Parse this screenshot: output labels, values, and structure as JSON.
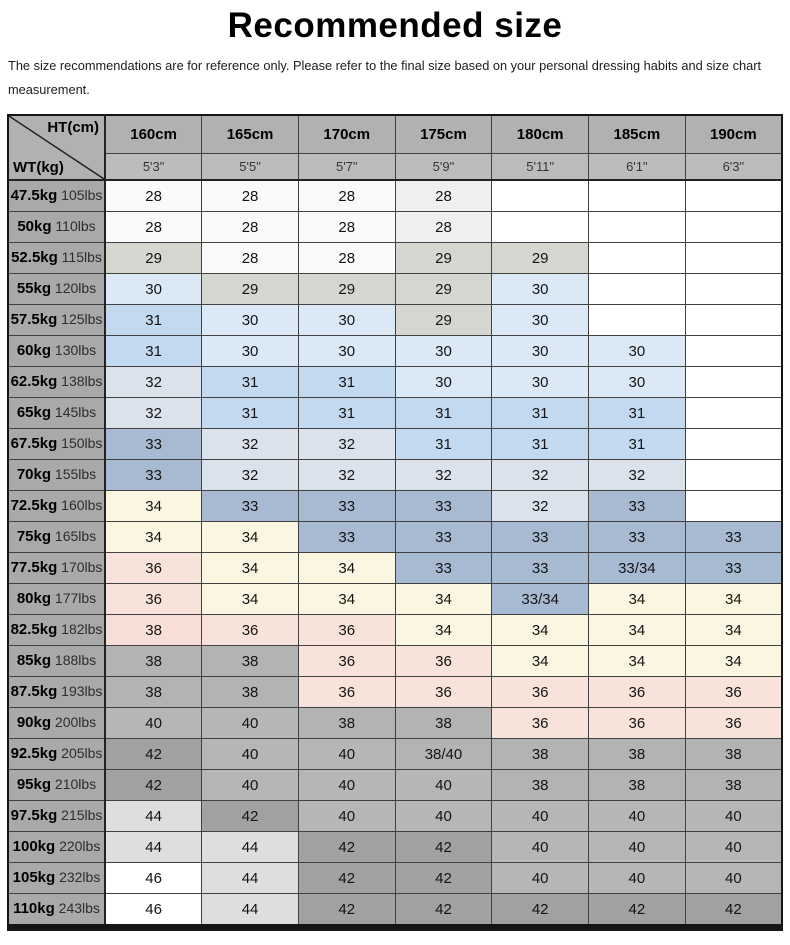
{
  "title": "Recommended size",
  "subtitle": "The size recommendations are for reference only. Please refer to the final size based on your personal dressing habits and size chart measurement.",
  "table": {
    "corner": {
      "ht": "HT(cm)",
      "wt": "WT(kg)"
    },
    "columns": [
      {
        "cm": "160cm",
        "ft": "5'3\""
      },
      {
        "cm": "165cm",
        "ft": "5'5\""
      },
      {
        "cm": "170cm",
        "ft": "5'7\""
      },
      {
        "cm": "175cm",
        "ft": "5'9\""
      },
      {
        "cm": "180cm",
        "ft": "5'11\""
      },
      {
        "cm": "185cm",
        "ft": "6'1\""
      },
      {
        "cm": "190cm",
        "ft": "6'3\""
      }
    ],
    "rows": [
      {
        "kg": "47.5kg",
        "lbs": "105lbs",
        "values": [
          "28",
          "28",
          "28",
          "28",
          "",
          "",
          ""
        ]
      },
      {
        "kg": "50kg",
        "lbs": "110lbs",
        "values": [
          "28",
          "28",
          "28",
          "28",
          "",
          "",
          ""
        ]
      },
      {
        "kg": "52.5kg",
        "lbs": "115lbs",
        "values": [
          "29",
          "28",
          "28",
          "29",
          "29",
          "",
          ""
        ]
      },
      {
        "kg": "55kg",
        "lbs": "120lbs",
        "values": [
          "30",
          "29",
          "29",
          "29",
          "30",
          "",
          ""
        ]
      },
      {
        "kg": "57.5kg",
        "lbs": "125lbs",
        "values": [
          "31",
          "30",
          "30",
          "29",
          "30",
          "",
          ""
        ]
      },
      {
        "kg": "60kg",
        "lbs": "130lbs",
        "values": [
          "31",
          "30",
          "30",
          "30",
          "30",
          "30",
          ""
        ]
      },
      {
        "kg": "62.5kg",
        "lbs": "138lbs",
        "values": [
          "32",
          "31",
          "31",
          "30",
          "30",
          "30",
          ""
        ]
      },
      {
        "kg": "65kg",
        "lbs": "145lbs",
        "values": [
          "32",
          "31",
          "31",
          "31",
          "31",
          "31",
          ""
        ]
      },
      {
        "kg": "67.5kg",
        "lbs": "150lbs",
        "values": [
          "33",
          "32",
          "32",
          "31",
          "31",
          "31",
          ""
        ]
      },
      {
        "kg": "70kg",
        "lbs": "155lbs",
        "values": [
          "33",
          "32",
          "32",
          "32",
          "32",
          "32",
          ""
        ]
      },
      {
        "kg": "72.5kg",
        "lbs": "160lbs",
        "values": [
          "34",
          "33",
          "33",
          "33",
          "32",
          "33",
          ""
        ]
      },
      {
        "kg": "75kg",
        "lbs": "165lbs",
        "values": [
          "34",
          "34",
          "33",
          "33",
          "33",
          "33",
          "33"
        ]
      },
      {
        "kg": "77.5kg",
        "lbs": "170lbs",
        "values": [
          "36",
          "34",
          "34",
          "33",
          "33",
          "33/34",
          "33"
        ]
      },
      {
        "kg": "80kg",
        "lbs": "177lbs",
        "values": [
          "36",
          "34",
          "34",
          "34",
          "33/34",
          "34",
          "34"
        ]
      },
      {
        "kg": "82.5kg",
        "lbs": "182lbs",
        "values": [
          "38",
          "36",
          "36",
          "34",
          "34",
          "34",
          "34"
        ]
      },
      {
        "kg": "85kg",
        "lbs": "188lbs",
        "values": [
          "38",
          "38",
          "36",
          "36",
          "34",
          "34",
          "34"
        ]
      },
      {
        "kg": "87.5kg",
        "lbs": "193lbs",
        "values": [
          "38",
          "38",
          "36",
          "36",
          "36",
          "36",
          "36"
        ]
      },
      {
        "kg": "90kg",
        "lbs": "200lbs",
        "values": [
          "40",
          "40",
          "38",
          "38",
          "36",
          "36",
          "36"
        ]
      },
      {
        "kg": "92.5kg",
        "lbs": "205lbs",
        "values": [
          "42",
          "40",
          "40",
          "38/40",
          "38",
          "38",
          "38"
        ]
      },
      {
        "kg": "95kg",
        "lbs": "210lbs",
        "values": [
          "42",
          "40",
          "40",
          "40",
          "38",
          "38",
          "38"
        ]
      },
      {
        "kg": "97.5kg",
        "lbs": "215lbs",
        "values": [
          "44",
          "42",
          "40",
          "40",
          "40",
          "40",
          "40"
        ]
      },
      {
        "kg": "100kg",
        "lbs": "220lbs",
        "values": [
          "44",
          "44",
          "42",
          "42",
          "40",
          "40",
          "40"
        ]
      },
      {
        "kg": "105kg",
        "lbs": "232lbs",
        "values": [
          "46",
          "44",
          "42",
          "42",
          "40",
          "40",
          "40"
        ]
      },
      {
        "kg": "110kg",
        "lbs": "243lbs",
        "values": [
          "46",
          "44",
          "42",
          "42",
          "42",
          "42",
          "42"
        ]
      }
    ]
  },
  "colors": {
    "value_bg": {
      "28": "#fafafa",
      "29": "#d6d6d1",
      "30": "#dbe9f7",
      "31": "#c3d9f0",
      "32": "#dbe2ec",
      "33": "#a7bad1",
      "33/34": "#a7bad1",
      "34": "#faf6e1",
      "36": "#f8e3da",
      "38": "#b3b3b3",
      "38/40": "#b3b3b3",
      "40": "#b6b6b6",
      "42": "#a1a1a1",
      "44": "#dedede",
      "46": "#ffffff",
      "blank": "#ffffff"
    },
    "overrides": {
      "0,3": "#efefef",
      "1,3": "#efefef",
      "14,0": "#f7dfd7"
    },
    "header_bg": "#b1b1b1",
    "subheader_bg": "#bcbcbc",
    "label_bg": "#a9a9a9",
    "grid_line": "#414141",
    "outer_border": "#151515"
  }
}
